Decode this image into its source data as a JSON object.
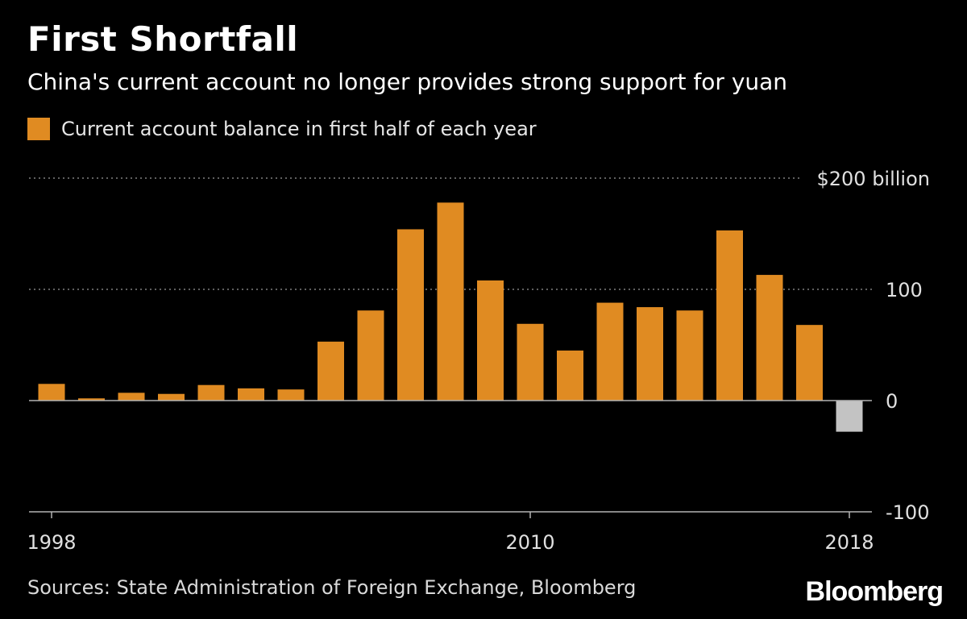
{
  "header": {
    "title": "First Shortfall",
    "subtitle": "China's current account no longer provides strong support for yuan"
  },
  "legend": {
    "label": "Current account balance in first half of each year",
    "color": "#e08b22"
  },
  "footer": {
    "source": "Sources: State Administration of Foreign Exchange, Bloomberg",
    "logo": "Bloomberg"
  },
  "chart_data": {
    "type": "bar",
    "categories": [
      "1998",
      "1999",
      "2000",
      "2001",
      "2002",
      "2003",
      "2004",
      "2005",
      "2006",
      "2007",
      "2008",
      "2009",
      "2010",
      "2011",
      "2012",
      "2013",
      "2014",
      "2015",
      "2016",
      "2017",
      "2018"
    ],
    "values": [
      15,
      2,
      7,
      6,
      14,
      11,
      10,
      53,
      81,
      154,
      178,
      108,
      69,
      45,
      88,
      84,
      81,
      153,
      113,
      68,
      -28
    ],
    "ylim": [
      -100,
      200
    ],
    "y_ticks": [
      {
        "value": 200,
        "label": "$200 billion"
      },
      {
        "value": 100,
        "label": "100"
      },
      {
        "value": 0,
        "label": "0"
      },
      {
        "value": -100,
        "label": "-100"
      }
    ],
    "x_tick_labels": [
      "1998",
      "2010",
      "2018"
    ],
    "grid": true,
    "colors": {
      "positive": "#e08b22",
      "negative": "#c3c3c3",
      "grid": "#808080",
      "axis": "#b3b3b3",
      "text": "#e0e0e0"
    }
  }
}
